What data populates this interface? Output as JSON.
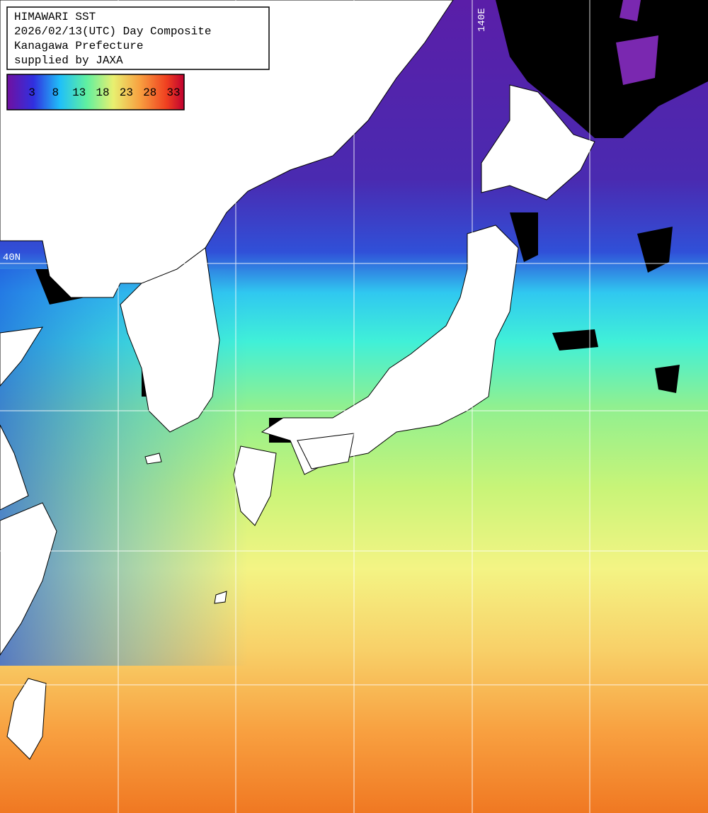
{
  "header": {
    "lines": [
      "HIMAWARI SST",
      "2026/02/13(UTC) Day Composite",
      "Kanagawa Prefecture",
      "supplied by JAXA"
    ]
  },
  "colorbar": {
    "ticks": [
      3,
      8,
      13,
      18,
      23,
      28,
      33
    ]
  },
  "grid_labels": {
    "latitude": "40N",
    "longitude": "140E"
  }
}
